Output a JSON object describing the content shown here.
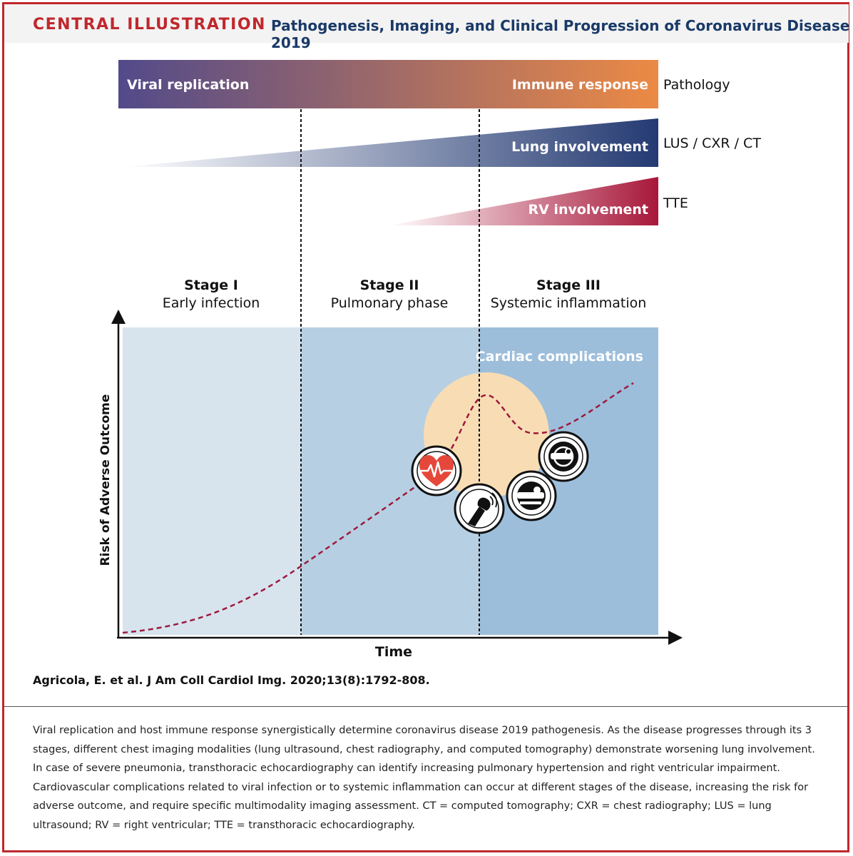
{
  "header": {
    "label": "CENTRAL ILLUSTRATION",
    "title": "Pathogenesis, Imaging, and Clinical Progression of Coronavirus Disease 2019"
  },
  "bars": {
    "pathology_left": "Viral replication",
    "pathology_right": "Immune response",
    "pathology_label": "Pathology",
    "lung": "Lung involvement",
    "lung_label": "LUS / CXR / CT",
    "rv": "RV involvement",
    "rv_label": "TTE"
  },
  "stages": [
    {
      "title": "Stage I",
      "subtitle": "Early infection"
    },
    {
      "title": "Stage II",
      "subtitle": "Pulmonary phase"
    },
    {
      "title": "Stage III",
      "subtitle": "Systemic inflammation"
    }
  ],
  "chart": {
    "cardiac_label": "Cardiac complications",
    "y_axis": "Risk of Adverse Outcome",
    "x_axis": "Time"
  },
  "colors": {
    "viral": "#524a8a",
    "immune": "#ec8a45",
    "lung": "#243a72",
    "rv": "#a8173a",
    "stage1": "#d7e4ee",
    "stage2": "#b7cfe2",
    "stage3": "#9cbedb",
    "curve": "#9c1a3e",
    "cardiac": "#f8ddb4"
  },
  "citation": "Agricola, E. et al. J Am Coll Cardiol Img. 2020;13(8):1792-808.",
  "caption": "Viral replication and host immune response synergistically determine coronavirus disease 2019 pathogenesis. As the disease progresses through its 3 stages, different chest imaging modalities (lung ultrasound, chest radiography, and computed tomography) demonstrate worsening lung involvement. In case of severe pneumonia, transthoracic echocardiography can identify increasing pulmonary hypertension and right ventricular impairment. Cardiovascular complications related to viral infection or to systemic inflammation can occur at different stages of the disease, increasing the risk for adverse outcome, and require specific multimodality imaging assessment. CT = computed tomography; CXR = chest radiography; LUS = lung ultrasound; RV = right ventricular; TTE = transthoracic echocardiography."
}
